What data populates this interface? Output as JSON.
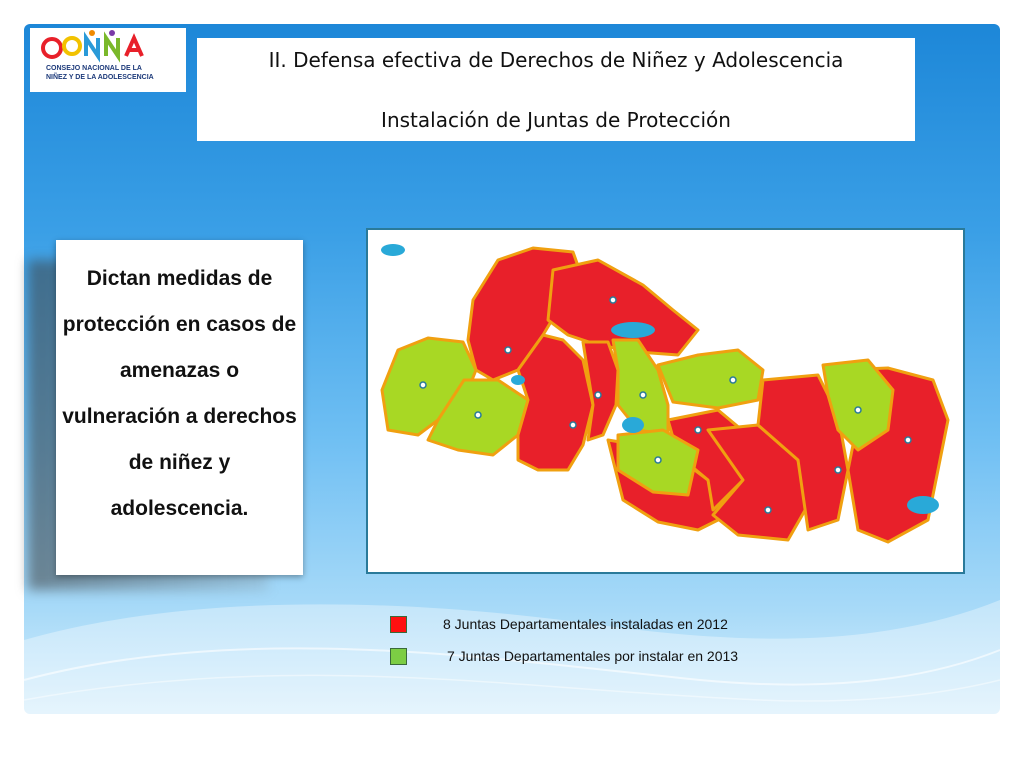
{
  "logo": {
    "wordmark": "CONNA",
    "caption": "CONSEJO NACIONAL DE LA NIÑEZ Y DE LA ADOLESCENCIA"
  },
  "header": {
    "title": "II. Defensa efectiva de Derechos de Niñez y Adolescencia",
    "subtitle": "Instalación de Juntas de Protección"
  },
  "card": {
    "text": "Dictan medidas de protección en casos de amenazas o vulneración a derechos de niñez y adolescencia."
  },
  "map": {
    "installed_color": "#e8202a",
    "pending_color": "#a8d824",
    "border_color": "#f0a010",
    "lake_color": "#29a9d8"
  },
  "legend": {
    "items": [
      {
        "label": "8 Juntas Departamentales instaladas en 2012",
        "color": "#ff1010"
      },
      {
        "label": "7 Juntas Departamentales por instalar en 2013",
        "color": "#7ccd44"
      }
    ]
  }
}
